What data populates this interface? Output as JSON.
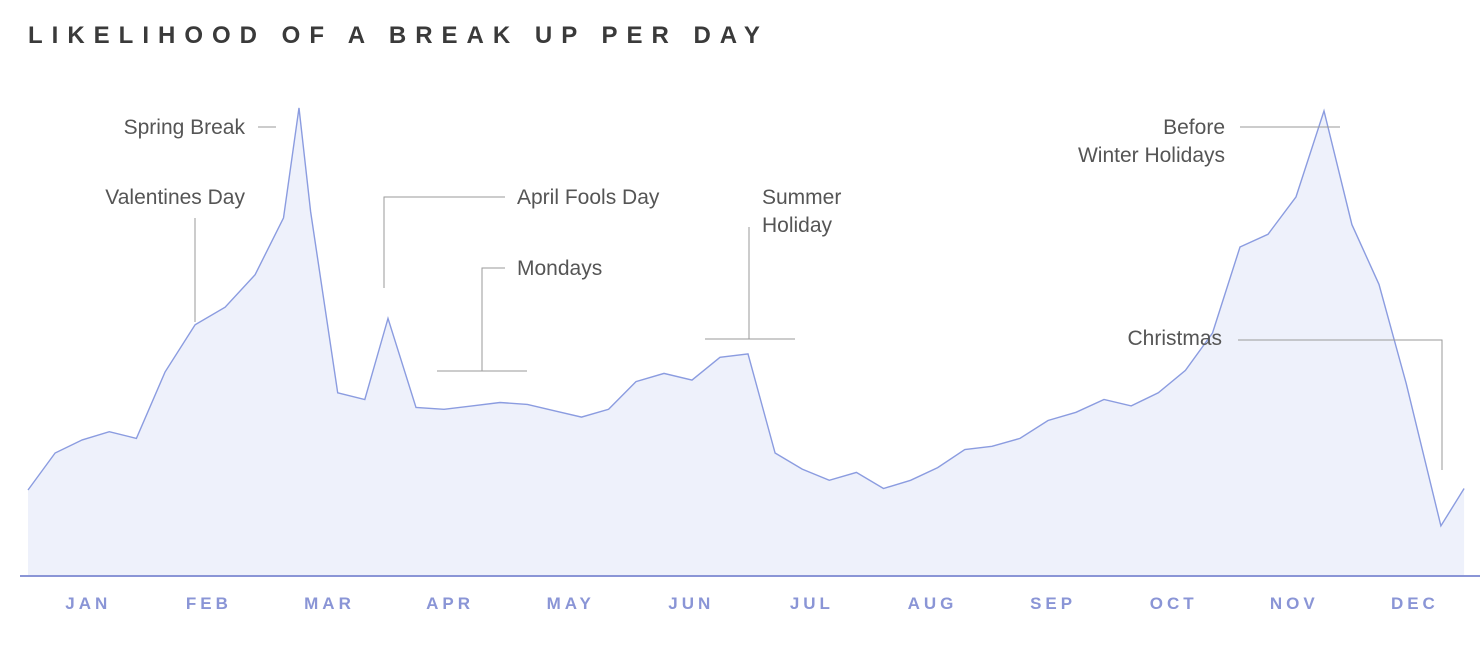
{
  "title": "LIKELIHOOD OF A BREAK UP PER DAY",
  "colors": {
    "line": "#8b9ce0",
    "area": "#eef1fb",
    "axis": "#8a95d6",
    "text": "#555555"
  },
  "annotations": {
    "spring_break": "Spring Break",
    "valentines": "Valentines Day",
    "april_fools": "April Fools Day",
    "mondays": "Mondays",
    "summer_1": "Summer",
    "summer_2": "Holiday",
    "before_1": "Before",
    "before_2": "Winter Holidays",
    "christmas": "Christmas"
  },
  "chart_data": {
    "type": "area",
    "title": "LIKELIHOOD OF A BREAK UP PER DAY",
    "xlabel": "",
    "ylabel": "",
    "y_axis_shown": false,
    "grid": "vertical month dividers",
    "categories": [
      "JAN",
      "FEB",
      "MAR",
      "APR",
      "MAY",
      "JUN",
      "JUL",
      "AUG",
      "SEP",
      "OCT",
      "NOV",
      "DEC"
    ],
    "x": [
      "Jan 1",
      "Jan 8",
      "Jan 15",
      "Jan 22",
      "Jan 29",
      "Feb 5",
      "Feb 12",
      "Feb 19",
      "Feb 26",
      "Mar 5",
      "Mar 9",
      "Mar 12",
      "Mar 19",
      "Mar 26",
      "Apr 1",
      "Apr 8",
      "Apr 15",
      "Apr 22",
      "Apr 29",
      "May 6",
      "May 13",
      "May 20",
      "May 27",
      "Jun 3",
      "Jun 10",
      "Jun 17",
      "Jun 24",
      "Jul 1",
      "Jul 8",
      "Jul 15",
      "Jul 22",
      "Jul 29",
      "Aug 5",
      "Aug 12",
      "Aug 19",
      "Aug 26",
      "Sep 2",
      "Sep 9",
      "Sep 16",
      "Sep 23",
      "Sep 30",
      "Oct 7",
      "Oct 14",
      "Oct 21",
      "Oct 28",
      "Nov 4",
      "Nov 11",
      "Nov 18",
      "Nov 25",
      "Dec 2",
      "Dec 9",
      "Dec 16",
      "Dec 25",
      "Dec 31"
    ],
    "series": [
      {
        "values": [
          18,
          25,
          28,
          30,
          28,
          42,
          52,
          55,
          62,
          74,
          96,
          75,
          38,
          36,
          53,
          35,
          34,
          35,
          36,
          35,
          34,
          33,
          34,
          40,
          42,
          40,
          45,
          46,
          25,
          22,
          20,
          21,
          18,
          20,
          22,
          26,
          27,
          28,
          32,
          34,
          36,
          35,
          38,
          42,
          50,
          68,
          70,
          78,
          96,
          72,
          60,
          40,
          10,
          18
        ]
      }
    ]
  }
}
